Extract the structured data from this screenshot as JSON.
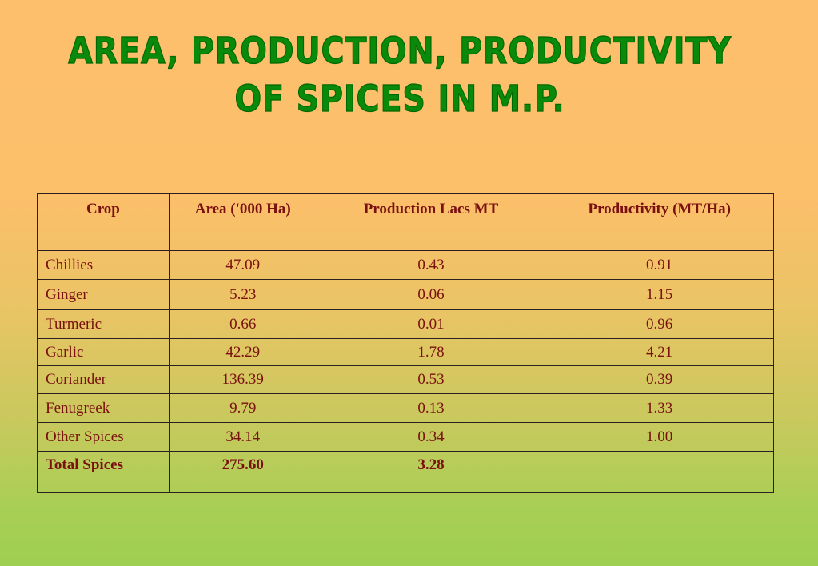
{
  "title": {
    "line1": "AREA, PRODUCTION, PRODUCTIVITY",
    "line2": "OF SPICES IN M.P."
  },
  "table": {
    "headers": [
      "Crop",
      "Area ('000 Ha)",
      "Production Lacs MT",
      "Productivity (MT/Ha)"
    ],
    "rows": [
      [
        "Chillies",
        "47.09",
        "0.43",
        "0.91"
      ],
      [
        "Ginger",
        "5.23",
        "0.06",
        "1.15"
      ],
      [
        "Turmeric",
        "0.66",
        "0.01",
        "0.96"
      ],
      [
        "Garlic",
        "42.29",
        "1.78",
        "4.21"
      ],
      [
        "Coriander",
        "136.39",
        "0.53",
        "0.39"
      ],
      [
        "Fenugreek",
        "9.79",
        "0.13",
        "1.33"
      ],
      [
        "Other Spices",
        "34.14",
        "0.34",
        "1.00"
      ]
    ],
    "total": [
      "Total Spices",
      "275.60",
      "3.28",
      ""
    ]
  },
  "colors": {
    "title": "#0a8a0a",
    "table_text": "#7a1010",
    "background_top": "#fdbf6c",
    "background_bottom": "#9ecf50"
  }
}
